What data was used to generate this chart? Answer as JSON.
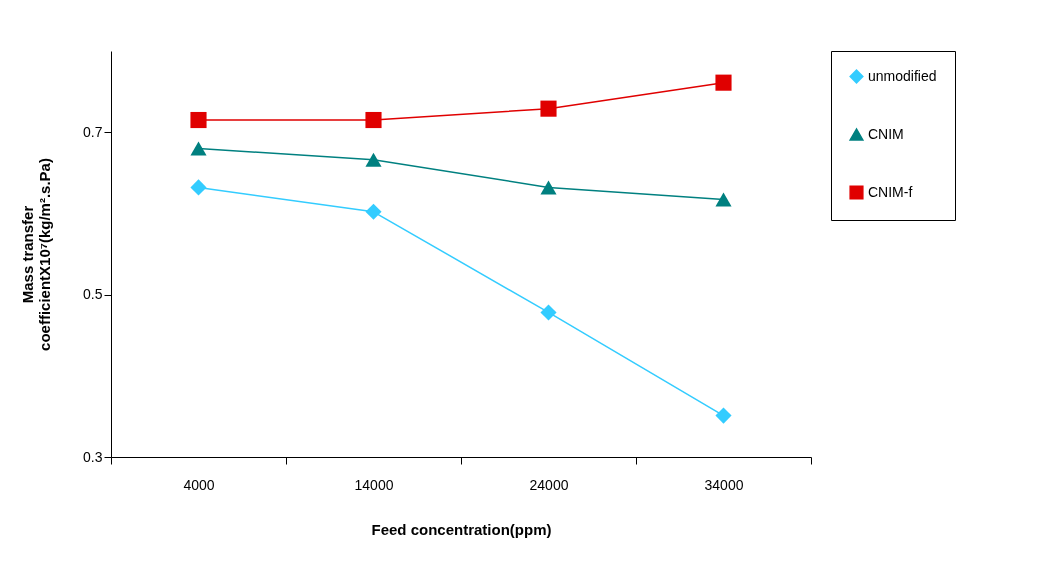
{
  "chart_data": {
    "type": "line",
    "xlabel": "Feed concentration(ppm)",
    "ylabel": "Mass transfer\ncoefficientX10⁷(kg/m².s.Pa)",
    "categories": [
      "4000",
      "14000",
      "24000",
      "34000"
    ],
    "series": [
      {
        "name": "unmodified",
        "color": "#33ccff",
        "marker": "diamond",
        "values": [
          0.632,
          0.602,
          0.478,
          0.351
        ]
      },
      {
        "name": "CNIM",
        "color": "#008080",
        "marker": "triangle",
        "values": [
          0.68,
          0.666,
          0.632,
          0.617
        ]
      },
      {
        "name": "CNIM-f",
        "color": "#e00000",
        "marker": "square",
        "values": [
          0.715,
          0.715,
          0.729,
          0.761
        ]
      }
    ],
    "ylim": [
      0.3,
      0.8
    ],
    "yticks": [
      0.3,
      0.5,
      0.7
    ],
    "grid": false,
    "legend": "right",
    "line_style": "solid"
  }
}
